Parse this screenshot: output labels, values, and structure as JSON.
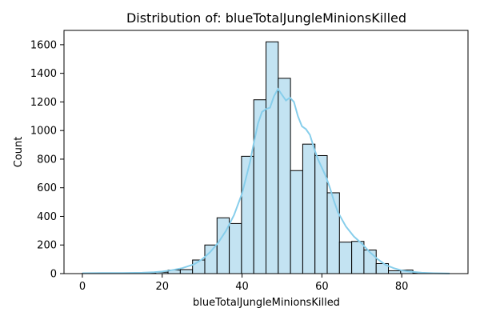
{
  "chart_data": {
    "type": "bar",
    "title": "Distribution of: blueTotalJungleMinionsKilled",
    "xlabel": "blueTotalJungleMinionsKilled",
    "ylabel": "Count",
    "xlim": [
      -4.6,
      96.6
    ],
    "ylim": [
      0,
      1700
    ],
    "x_ticks": [
      0,
      20,
      40,
      60,
      80
    ],
    "y_ticks": [
      0,
      200,
      400,
      600,
      800,
      1000,
      1200,
      1400,
      1600
    ],
    "bin_edges": [
      0,
      3.067,
      6.133,
      9.2,
      12.267,
      15.333,
      18.4,
      21.467,
      24.533,
      27.6,
      30.667,
      33.733,
      36.8,
      39.867,
      42.933,
      46.0,
      49.067,
      52.133,
      55.2,
      58.267,
      61.333,
      64.4,
      67.467,
      70.533,
      73.6,
      76.667,
      79.733,
      82.8,
      85.867,
      88.933,
      92.0
    ],
    "counts": [
      2,
      0,
      0,
      0,
      0,
      5,
      10,
      25,
      28,
      95,
      200,
      390,
      350,
      820,
      1215,
      1620,
      1365,
      720,
      905,
      825,
      565,
      220,
      225,
      165,
      70,
      20,
      25,
      5,
      2,
      0
    ],
    "kde": {
      "x": [
        0,
        5,
        10,
        15,
        18,
        20,
        22,
        25,
        28,
        30,
        32,
        34,
        36,
        38,
        40,
        42,
        43,
        44,
        45,
        46,
        47,
        48,
        49,
        50,
        51,
        52,
        53,
        54,
        55,
        56,
        57,
        58,
        59,
        60,
        61,
        62,
        63,
        64,
        66,
        68,
        70,
        72,
        74,
        76,
        78,
        80,
        82,
        85,
        88,
        92
      ],
      "y": [
        3,
        4,
        4,
        6,
        10,
        15,
        22,
        38,
        65,
        100,
        150,
        215,
        300,
        410,
        560,
        780,
        920,
        1050,
        1130,
        1150,
        1160,
        1240,
        1290,
        1250,
        1210,
        1230,
        1200,
        1100,
        1030,
        1010,
        970,
        880,
        800,
        740,
        680,
        600,
        510,
        430,
        330,
        260,
        210,
        150,
        100,
        60,
        38,
        22,
        14,
        6,
        3,
        1
      ]
    },
    "colors": {
      "bar_fill": "#c3e3f2",
      "bar_edge": "#000000",
      "kde_line": "#87ceeb"
    },
    "grid": false,
    "legend": "none"
  }
}
